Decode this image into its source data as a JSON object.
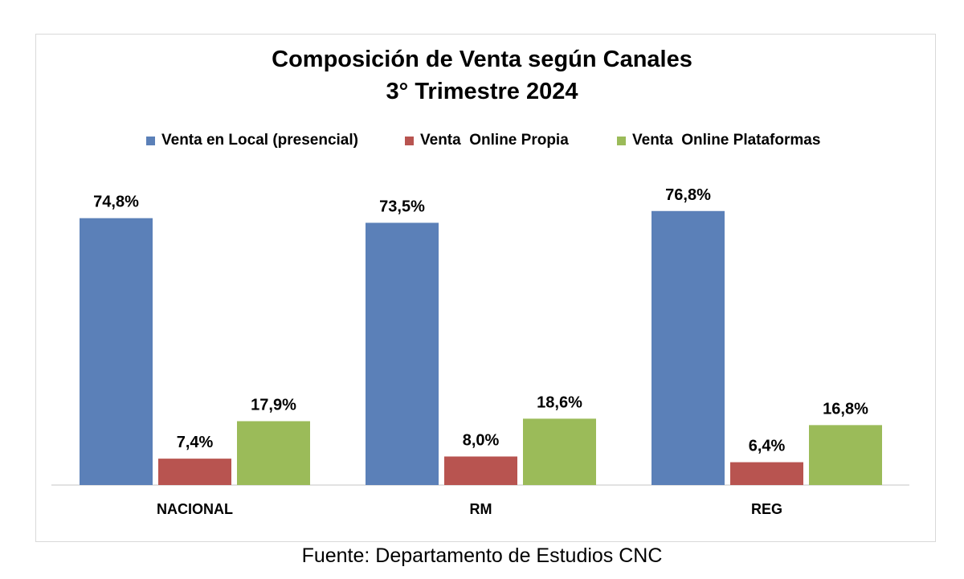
{
  "chart_data": {
    "type": "bar",
    "title": "Composición de Venta según Canales",
    "subtitle": "3° Trimestre 2024",
    "categories": [
      "NACIONAL",
      "RM",
      "REG"
    ],
    "series": [
      {
        "name": "Venta en Local (presencial)",
        "color": "#5b80b8",
        "values": [
          74.8,
          73.5,
          76.8
        ],
        "labels": [
          "74,8%",
          "73,5%",
          "76,8%"
        ]
      },
      {
        "name": "Venta  Online Propia",
        "color": "#b85450",
        "values": [
          7.4,
          8.0,
          6.4
        ],
        "labels": [
          "7,4%",
          "8,0%",
          "6,4%"
        ]
      },
      {
        "name": "Venta  Online Plataformas",
        "color": "#9bbb59",
        "values": [
          17.9,
          18.6,
          16.8
        ],
        "labels": [
          "17,9%",
          "18,6%",
          "16,8%"
        ]
      }
    ],
    "ylim": [
      0,
      100
    ],
    "grid": false,
    "legend_position": "top",
    "source": "Fuente: Departamento de Estudios CNC"
  }
}
